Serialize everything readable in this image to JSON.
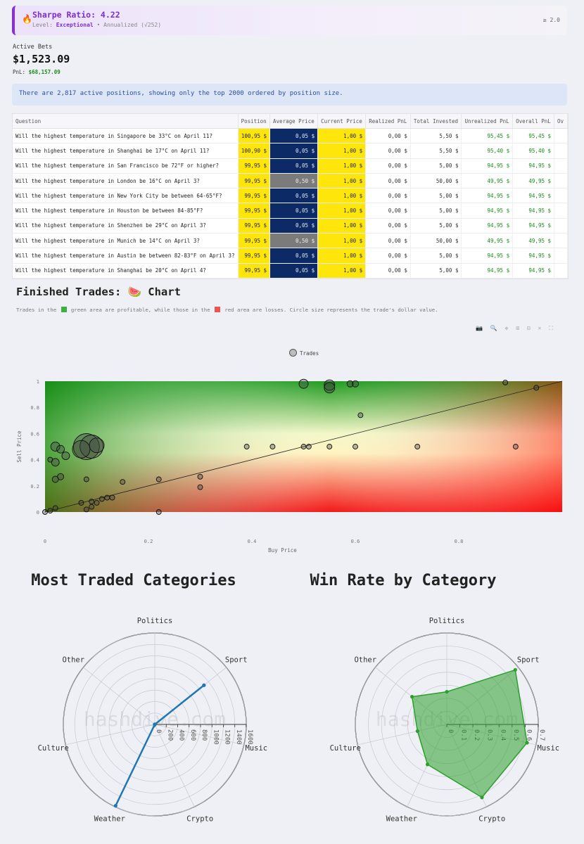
{
  "sharpe": {
    "icon": "🔥",
    "title": "Sharpe Ratio: 4.22",
    "level_prefix": "Level: ",
    "level": "Exceptional",
    "annualized": " • Annualized (√252)",
    "threshold": "≥ 2.0"
  },
  "summary": {
    "active_bets_label": "Active Bets",
    "active_bets_value": "$1,523.09",
    "pnl_label": "PnL: ",
    "pnl_value": "$68,157.09"
  },
  "banner": "There are 2,817 active positions, showing only the top 2000 ordered by position size.",
  "table": {
    "headers": [
      "Question",
      "Position",
      "Average Price",
      "Current Price",
      "Realized PnL",
      "Total Invested",
      "Unrealized PnL",
      "Overall PnL",
      "Ov"
    ],
    "rows": [
      [
        "Will the highest temperature in Singapore be 33°C on April 11?",
        "100,95 $",
        "0,05 $",
        "1,00 $",
        "0,00 $",
        "5,50 $",
        "95,45 $",
        "95,45 $"
      ],
      [
        "Will the highest temperature in Shanghai be 17°C on April 11?",
        "100,90 $",
        "0,05 $",
        "1,00 $",
        "0,00 $",
        "5,50 $",
        "95,40 $",
        "95,40 $"
      ],
      [
        "Will the highest temperature in San Francisco be 72°F or higher?",
        "99,95 $",
        "0,05 $",
        "1,00 $",
        "0,00 $",
        "5,00 $",
        "94,95 $",
        "94,95 $"
      ],
      [
        "Will the highest temperature in London be 16°C on April 3?",
        "99,95 $",
        "0,50 $",
        "1,00 $",
        "0,00 $",
        "50,00 $",
        "49,95 $",
        "49,95 $"
      ],
      [
        "Will the highest temperature in New York City be between 64-65°F?",
        "99,95 $",
        "0,05 $",
        "1,00 $",
        "0,00 $",
        "5,00 $",
        "94,95 $",
        "94,95 $"
      ],
      [
        "Will the highest temperature in Houston be between 84-85°F?",
        "99,95 $",
        "0,05 $",
        "1,00 $",
        "0,00 $",
        "5,00 $",
        "94,95 $",
        "94,95 $"
      ],
      [
        "Will the highest temperature in Shenzhen be 29°C on April 3?",
        "99,95 $",
        "0,05 $",
        "1,00 $",
        "0,00 $",
        "5,00 $",
        "94,95 $",
        "94,95 $"
      ],
      [
        "Will the highest temperature in Munich be 14°C on April 3?",
        "99,95 $",
        "0,50 $",
        "1,00 $",
        "0,00 $",
        "50,00 $",
        "49,95 $",
        "49,95 $"
      ],
      [
        "Will the highest temperature in Austin be between 82-83°F on April 3?",
        "99,95 $",
        "0,05 $",
        "1,00 $",
        "0,00 $",
        "5,00 $",
        "94,95 $",
        "94,95 $"
      ],
      [
        "Will the highest temperature in Shanghai be 20°C on April 4?",
        "99,95 $",
        "0,05 $",
        "1,00 $",
        "0,00 $",
        "5,00 $",
        "94,95 $",
        "94,95 $"
      ]
    ]
  },
  "finished": {
    "title": "Finished Trades: 🍉 Chart",
    "desc_1": "Trades in the ",
    "desc_2": " green area are profitable, while those in the ",
    "desc_3": " red area are losses. Circle size represents the trade's dollar value.",
    "green": "#3cb043",
    "red": "#ef5350",
    "toolbar": "📷 🔍 ✥ ⊞ ⊟ ✕ ⛶"
  },
  "chart_data": [
    {
      "type": "scatter",
      "title": "",
      "xlabel": "Buy Price",
      "ylabel": "Sell Price",
      "xlim": [
        0,
        1
      ],
      "ylim": [
        0,
        1
      ],
      "x_ticks": [
        "0",
        "0.2",
        "0.4",
        "0.6",
        "0.8"
      ],
      "y_ticks": [
        "0",
        "0.2",
        "0.4",
        "0.6",
        "0.8",
        "1"
      ],
      "legend": "top-center",
      "series": [
        {
          "name": "Trades",
          "points": [
            {
              "x": 0.08,
              "y": 0.5,
              "size": 18
            },
            {
              "x": 0.09,
              "y": 0.5,
              "size": 16
            },
            {
              "x": 0.07,
              "y": 0.48,
              "size": 12
            },
            {
              "x": 0.1,
              "y": 0.51,
              "size": 10
            },
            {
              "x": 0.02,
              "y": 0.5,
              "size": 6
            },
            {
              "x": 0.03,
              "y": 0.48,
              "size": 5
            },
            {
              "x": 0.04,
              "y": 0.43,
              "size": 5
            },
            {
              "x": 0.02,
              "y": 0.38,
              "size": 5
            },
            {
              "x": 0.01,
              "y": 0.4,
              "size": 3
            },
            {
              "x": 0.03,
              "y": 0.27,
              "size": 4
            },
            {
              "x": 0.02,
              "y": 0.25,
              "size": 4
            },
            {
              "x": 0.08,
              "y": 0.25,
              "size": 3
            },
            {
              "x": 0.07,
              "y": 0.07,
              "size": 3
            },
            {
              "x": 0.09,
              "y": 0.08,
              "size": 3
            },
            {
              "x": 0.1,
              "y": 0.07,
              "size": 3
            },
            {
              "x": 0.11,
              "y": 0.1,
              "size": 3
            },
            {
              "x": 0.08,
              "y": 0.02,
              "size": 3
            },
            {
              "x": 0.09,
              "y": 0.04,
              "size": 3
            },
            {
              "x": 0.12,
              "y": 0.11,
              "size": 3
            },
            {
              "x": 0.13,
              "y": 0.11,
              "size": 3
            },
            {
              "x": 0.15,
              "y": 0.23,
              "size": 3
            },
            {
              "x": 0.22,
              "y": 0.25,
              "size": 3
            },
            {
              "x": 0.22,
              "y": 0.0,
              "size": 3
            },
            {
              "x": 0.3,
              "y": 0.27,
              "size": 3
            },
            {
              "x": 0.3,
              "y": 0.19,
              "size": 3
            },
            {
              "x": 0.01,
              "y": 0.01,
              "size": 3
            },
            {
              "x": 0.0,
              "y": 0.0,
              "size": 3
            },
            {
              "x": 0.02,
              "y": 0.03,
              "size": 3
            },
            {
              "x": 0.39,
              "y": 0.5,
              "size": 3
            },
            {
              "x": 0.44,
              "y": 0.5,
              "size": 3
            },
            {
              "x": 0.5,
              "y": 0.5,
              "size": 3
            },
            {
              "x": 0.51,
              "y": 0.5,
              "size": 3
            },
            {
              "x": 0.55,
              "y": 0.5,
              "size": 3
            },
            {
              "x": 0.6,
              "y": 0.5,
              "size": 3
            },
            {
              "x": 0.72,
              "y": 0.5,
              "size": 3
            },
            {
              "x": 0.91,
              "y": 0.5,
              "size": 3
            },
            {
              "x": 0.5,
              "y": 0.98,
              "size": 6
            },
            {
              "x": 0.55,
              "y": 0.97,
              "size": 7
            },
            {
              "x": 0.55,
              "y": 0.95,
              "size": 7
            },
            {
              "x": 0.59,
              "y": 0.98,
              "size": 4
            },
            {
              "x": 0.6,
              "y": 0.98,
              "size": 4
            },
            {
              "x": 0.61,
              "y": 0.74,
              "size": 3
            },
            {
              "x": 0.89,
              "y": 0.99,
              "size": 3
            },
            {
              "x": 0.95,
              "y": 0.95,
              "size": 3
            }
          ]
        }
      ]
    },
    {
      "type": "radar",
      "title": "Most Traded Categories",
      "categories": [
        "Politics",
        "Sport",
        "Music",
        "Crypto",
        "Weather",
        "Culture",
        "Other"
      ],
      "radial_ticks": [
        "0",
        "200",
        "400",
        "600",
        "800",
        "1000",
        "1200",
        "1400",
        "1600"
      ],
      "rmax": 1600,
      "series": [
        {
          "name": "",
          "values": [
            0,
            1100,
            0,
            0,
            1580,
            0,
            0
          ],
          "color": "#1f77b4"
        }
      ]
    },
    {
      "type": "radar",
      "title": "Win Rate by Category",
      "categories": [
        "Politics",
        "Sport",
        "Music",
        "Crypto",
        "Weather",
        "Culture",
        "Other"
      ],
      "radial_ticks": [
        "0",
        "0.1",
        "0.2",
        "0.3",
        "0.4",
        "0.5",
        "0.6",
        "0.7"
      ],
      "rmax": 0.7,
      "series": [
        {
          "name": "",
          "values": [
            0.25,
            0.67,
            0.63,
            0.62,
            0.34,
            0.23,
            0.34
          ],
          "color": "#2ca02c"
        }
      ]
    }
  ],
  "watermark": "hashdive.com"
}
